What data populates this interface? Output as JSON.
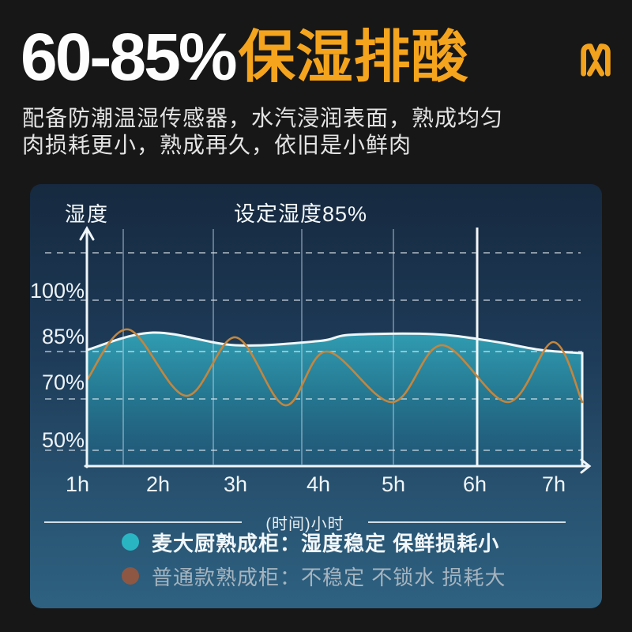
{
  "header": {
    "title_value": "60-85%",
    "title_accent": "保湿排酸",
    "accent_color": "#f4a41d",
    "subtitle_line1": "配备防潮温湿传感器，水汽浸润表面，熟成均匀",
    "subtitle_line2": "肉损耗更小，熟成再久，依旧是小鲜肉",
    "brand_logo_icon": "maidachu-m-logo"
  },
  "chart_data": {
    "type": "area",
    "title": "设定湿度85%",
    "ylabel": "湿度",
    "xlabel": "(时间)小时",
    "set_humidity_pct": 85,
    "x_ticks": [
      "1h",
      "2h",
      "3h",
      "4h",
      "5h",
      "6h",
      "7h"
    ],
    "y_ticks": [
      "100%",
      "85%",
      "70%",
      "50%"
    ],
    "xlim_hours": [
      1,
      7
    ],
    "grid": "vertical-lines + horizontal-dashed",
    "legend_position": "below",
    "series": [
      {
        "name": "麦大厨熟成柜",
        "style": "area",
        "color": "#2b8ba1",
        "stroke": "#eff6f8",
        "x": [
          1,
          1.8,
          2.8,
          3.8,
          4.2,
          5.2,
          5.9,
          6.5,
          7
        ],
        "values": [
          85.5,
          91,
          87,
          88.3,
          90.3,
          90.5,
          88.3,
          85.5,
          84.5
        ]
      },
      {
        "name": "普通款熟成柜",
        "style": "line",
        "color": "#c4863e",
        "x": [
          1,
          1.5,
          2.2,
          2.8,
          3.4,
          3.9,
          4.7,
          5.3,
          6.1,
          6.65,
          7
        ],
        "values": [
          76,
          92,
          71,
          89.5,
          68,
          85,
          69,
          87,
          69,
          88,
          69
        ]
      }
    ],
    "legend": [
      {
        "dot_color": "#2ab5c3",
        "label": "麦大厨熟成柜：湿度稳定 保鲜损耗小"
      },
      {
        "dot_color": "#8d5743",
        "label": "普通款熟成柜：不稳定 不锁水 损耗大"
      }
    ]
  }
}
